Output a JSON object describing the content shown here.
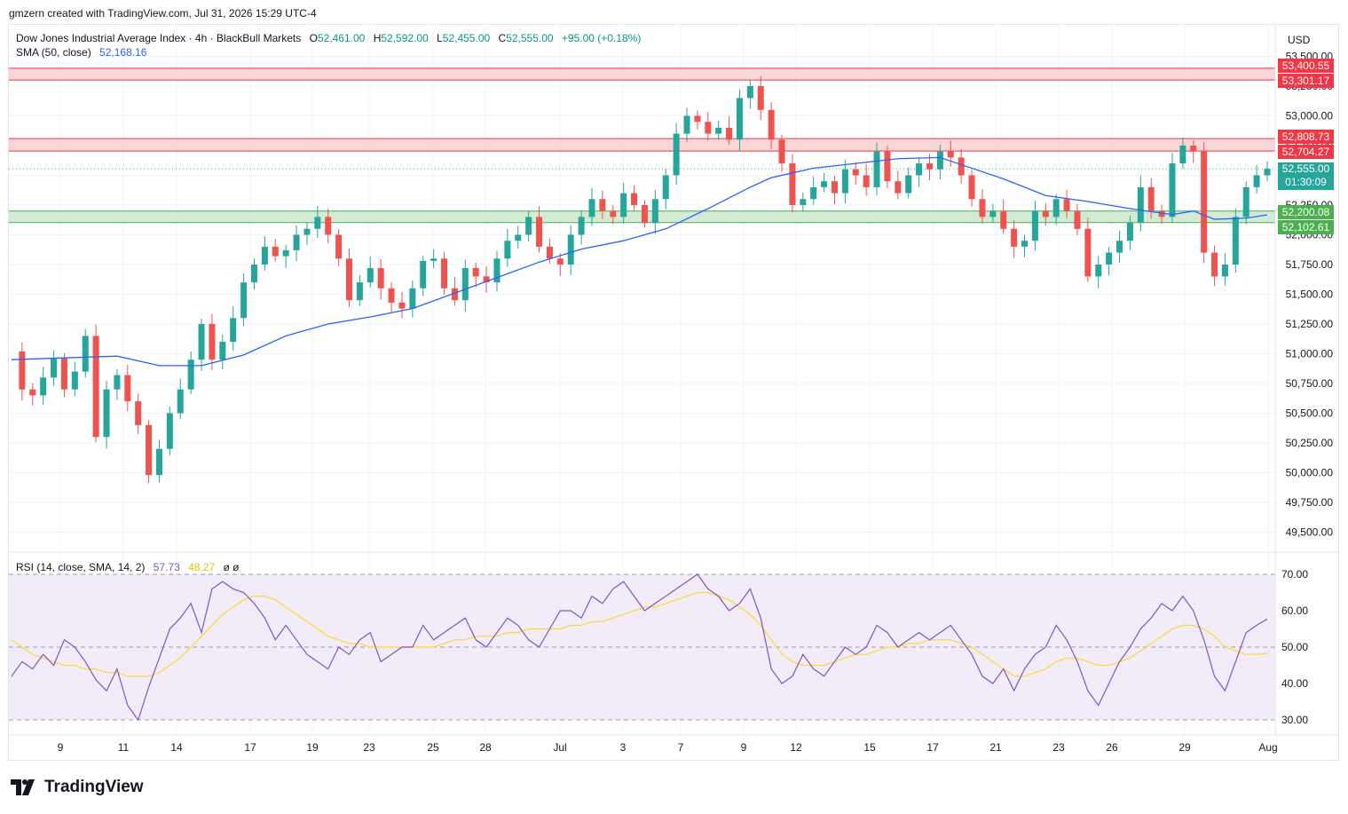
{
  "credit": "gmzern created with TradingView.com, Jul 31, 2026 15:29 UTC-4",
  "legend": {
    "symbol": "Dow Jones Industrial Average Index · 4h · BlackBull Markets",
    "o_label": "O",
    "o_value": "52,461.00",
    "h_label": "H",
    "h_value": "52,592.00",
    "l_label": "L",
    "l_value": "52,455.00",
    "c_label": "C",
    "c_value": "52,555.00",
    "change": "+95.00 (+0.18%)",
    "sma_label": "SMA (50, close)",
    "sma_value": "52,168.16",
    "rsi_label": "RSI (14, close, SMA, 14, 2)",
    "rsi_value": "57.73",
    "rsi_ma_value": "48.27",
    "rsi_extra": "ø  ø"
  },
  "currency": "USD",
  "brand": "TradingView",
  "price_tags": {
    "res_top_high": "53,400.55",
    "res_top_low": "53,301.17",
    "res_mid_high": "52,808.73",
    "res_mid_low": "52,704.27",
    "last_price": "52,555.00",
    "countdown": "01:30:09",
    "sup_high": "52,200.08",
    "sup_low": "52,102.61"
  },
  "colors": {
    "up": "#26a69a",
    "down": "#ef5350",
    "sma": "#2962ff",
    "rsi": "#7e57c2",
    "rsi_ma": "#fdd835",
    "res_zone": "#f8cdd0",
    "res_line": "#f23645",
    "sup_zone": "#c8e6c9",
    "sup_line": "#4caf50",
    "rsi_band": "#ede7f6"
  },
  "chart_data": {
    "type": "candlestick",
    "title": "Dow Jones Industrial Average Index · 4h · BlackBull Markets",
    "price_axis_ticks": [
      "53,500.00",
      "53,250.00",
      "53,000.00",
      "52,750.00",
      "52,500.00",
      "52,250.00",
      "52,000.00",
      "51,750.00",
      "51,500.00",
      "51,250.00",
      "51,000.00",
      "50,750.00",
      "50,500.00",
      "50,250.00",
      "50,000.00",
      "49,750.00",
      "49,500.00"
    ],
    "ylim": [
      49400,
      53600
    ],
    "x_tick_labels": [
      "9",
      "11",
      "14",
      "17",
      "19",
      "23",
      "25",
      "28",
      "Jul",
      "3",
      "7",
      "9",
      "12",
      "15",
      "17",
      "21",
      "23",
      "26",
      "29",
      "Aug"
    ],
    "zones": [
      {
        "kind": "resistance",
        "low": 53301.17,
        "high": 53400.55
      },
      {
        "kind": "resistance",
        "low": 52704.27,
        "high": 52808.73
      },
      {
        "kind": "support",
        "low": 52102.61,
        "high": 52200.08
      }
    ],
    "last_close": 52555,
    "sma_50_last": 52168.16,
    "price_path": [
      [
        0,
        51020
      ],
      [
        1,
        50700
      ],
      [
        2,
        50650
      ],
      [
        3,
        50800
      ],
      [
        4,
        50960
      ],
      [
        5,
        50700
      ],
      [
        6,
        50850
      ],
      [
        7,
        51150
      ],
      [
        8,
        50300
      ],
      [
        9,
        50700
      ],
      [
        10,
        50820
      ],
      [
        11,
        50600
      ],
      [
        12,
        50400
      ],
      [
        13,
        49980
      ],
      [
        14,
        50200
      ],
      [
        15,
        50500
      ],
      [
        16,
        50700
      ],
      [
        17,
        50950
      ],
      [
        18,
        51250
      ],
      [
        19,
        50950
      ],
      [
        20,
        51100
      ],
      [
        21,
        51300
      ],
      [
        22,
        51600
      ],
      [
        23,
        51750
      ],
      [
        24,
        51900
      ],
      [
        25,
        51820
      ],
      [
        26,
        51870
      ],
      [
        27,
        52000
      ],
      [
        28,
        52050
      ],
      [
        29,
        52150
      ],
      [
        30,
        52000
      ],
      [
        31,
        51800
      ],
      [
        32,
        51450
      ],
      [
        33,
        51600
      ],
      [
        34,
        51720
      ],
      [
        35,
        51550
      ],
      [
        36,
        51430
      ],
      [
        37,
        51380
      ],
      [
        38,
        51550
      ],
      [
        39,
        51780
      ],
      [
        40,
        51800
      ],
      [
        41,
        51550
      ],
      [
        42,
        51450
      ],
      [
        43,
        51720
      ],
      [
        44,
        51650
      ],
      [
        45,
        51600
      ],
      [
        46,
        51800
      ],
      [
        47,
        51950
      ],
      [
        48,
        52000
      ],
      [
        49,
        52150
      ],
      [
        50,
        51900
      ],
      [
        51,
        51800
      ],
      [
        52,
        51750
      ],
      [
        53,
        52000
      ],
      [
        54,
        52150
      ],
      [
        55,
        52300
      ],
      [
        56,
        52200
      ],
      [
        57,
        52150
      ],
      [
        58,
        52350
      ],
      [
        59,
        52250
      ],
      [
        60,
        52100
      ],
      [
        61,
        52300
      ],
      [
        62,
        52500
      ],
      [
        63,
        52850
      ],
      [
        64,
        53000
      ],
      [
        65,
        52950
      ],
      [
        66,
        52850
      ],
      [
        67,
        52900
      ],
      [
        68,
        52800
      ],
      [
        69,
        53150
      ],
      [
        70,
        53250
      ],
      [
        71,
        53050
      ],
      [
        72,
        52800
      ],
      [
        73,
        52600
      ],
      [
        74,
        52250
      ],
      [
        75,
        52300
      ],
      [
        76,
        52400
      ],
      [
        77,
        52450
      ],
      [
        78,
        52350
      ],
      [
        79,
        52550
      ],
      [
        80,
        52500
      ],
      [
        81,
        52400
      ],
      [
        82,
        52700
      ],
      [
        83,
        52450
      ],
      [
        84,
        52350
      ],
      [
        85,
        52500
      ],
      [
        86,
        52600
      ],
      [
        87,
        52550
      ],
      [
        88,
        52700
      ],
      [
        89,
        52650
      ],
      [
        90,
        52500
      ],
      [
        91,
        52300
      ],
      [
        92,
        52150
      ],
      [
        93,
        52200
      ],
      [
        94,
        52050
      ],
      [
        95,
        51900
      ],
      [
        96,
        51950
      ],
      [
        97,
        52200
      ],
      [
        98,
        52150
      ],
      [
        99,
        52300
      ],
      [
        100,
        52200
      ],
      [
        101,
        52050
      ],
      [
        102,
        51650
      ],
      [
        103,
        51750
      ],
      [
        104,
        51850
      ],
      [
        105,
        51950
      ],
      [
        106,
        52100
      ],
      [
        107,
        52400
      ],
      [
        108,
        52200
      ],
      [
        109,
        52150
      ],
      [
        110,
        52600
      ],
      [
        111,
        52750
      ],
      [
        112,
        52700
      ],
      [
        113,
        51850
      ],
      [
        114,
        51650
      ],
      [
        115,
        51750
      ],
      [
        116,
        52150
      ],
      [
        117,
        52400
      ],
      [
        118,
        52500
      ],
      [
        119,
        52555
      ]
    ],
    "sma_path": [
      [
        0,
        50950
      ],
      [
        10,
        50980
      ],
      [
        14,
        50900
      ],
      [
        18,
        50900
      ],
      [
        22,
        50990
      ],
      [
        26,
        51150
      ],
      [
        30,
        51250
      ],
      [
        34,
        51310
      ],
      [
        38,
        51380
      ],
      [
        42,
        51510
      ],
      [
        46,
        51640
      ],
      [
        50,
        51770
      ],
      [
        54,
        51880
      ],
      [
        58,
        51950
      ],
      [
        62,
        52050
      ],
      [
        66,
        52220
      ],
      [
        70,
        52400
      ],
      [
        72,
        52480
      ],
      [
        76,
        52560
      ],
      [
        80,
        52600
      ],
      [
        84,
        52640
      ],
      [
        88,
        52650
      ],
      [
        90,
        52590
      ],
      [
        94,
        52470
      ],
      [
        98,
        52330
      ],
      [
        102,
        52280
      ],
      [
        106,
        52220
      ],
      [
        110,
        52170
      ],
      [
        112,
        52200
      ],
      [
        114,
        52130
      ],
      [
        117,
        52140
      ],
      [
        119,
        52168
      ]
    ],
    "rsi": {
      "ylim": [
        27,
        73
      ],
      "levels": [
        70,
        50,
        30
      ],
      "tick_labels": [
        "70.00",
        "60.00",
        "50.00",
        "40.00",
        "30.00"
      ],
      "last_value": 57.73,
      "ma_last_value": 48.27,
      "values": [
        42,
        46,
        44,
        48,
        45,
        52,
        50,
        46,
        41,
        38,
        44,
        34,
        30,
        39,
        47,
        55,
        58,
        62,
        54,
        66,
        68,
        66,
        65,
        62,
        58,
        52,
        56,
        52,
        48,
        46,
        44,
        50,
        48,
        52,
        54,
        46,
        48,
        50,
        50,
        56,
        52,
        54,
        56,
        58,
        52,
        50,
        54,
        58,
        56,
        52,
        50,
        55,
        60,
        60,
        58,
        64,
        62,
        66,
        68,
        64,
        60,
        62,
        64,
        66,
        68,
        70,
        66,
        64,
        60,
        62,
        66,
        58,
        44,
        40,
        42,
        48,
        44,
        42,
        46,
        50,
        48,
        50,
        56,
        54,
        50,
        52,
        54,
        52,
        54,
        56,
        52,
        48,
        42,
        40,
        44,
        38,
        44,
        48,
        50,
        56,
        52,
        46,
        38,
        34,
        40,
        46,
        50,
        55,
        58,
        62,
        60,
        64,
        60,
        52,
        42,
        38,
        46,
        54,
        56,
        57.73
      ],
      "ma_values": [
        52,
        50,
        48,
        47,
        46,
        45,
        45,
        44,
        44,
        43,
        43,
        42,
        42,
        42,
        43,
        45,
        47,
        50,
        53,
        56,
        59,
        61,
        63,
        64,
        64,
        63,
        61,
        59,
        57,
        55,
        53,
        52,
        51,
        51,
        50,
        50,
        50,
        50,
        50,
        50,
        50,
        51,
        52,
        52,
        53,
        53,
        53,
        54,
        54,
        55,
        55,
        55,
        55,
        56,
        56,
        57,
        57,
        58,
        59,
        60,
        61,
        61,
        62,
        63,
        64,
        65,
        65,
        64,
        63,
        61,
        59,
        56,
        52,
        48,
        46,
        45,
        45,
        45,
        46,
        47,
        48,
        48,
        49,
        50,
        50,
        51,
        51,
        52,
        52,
        52,
        51,
        50,
        48,
        46,
        44,
        42,
        42,
        43,
        44,
        46,
        47,
        47,
        46,
        45,
        45,
        46,
        47,
        49,
        51,
        53,
        55,
        56,
        56,
        55,
        53,
        50,
        49,
        48,
        48,
        48.27
      ]
    }
  }
}
